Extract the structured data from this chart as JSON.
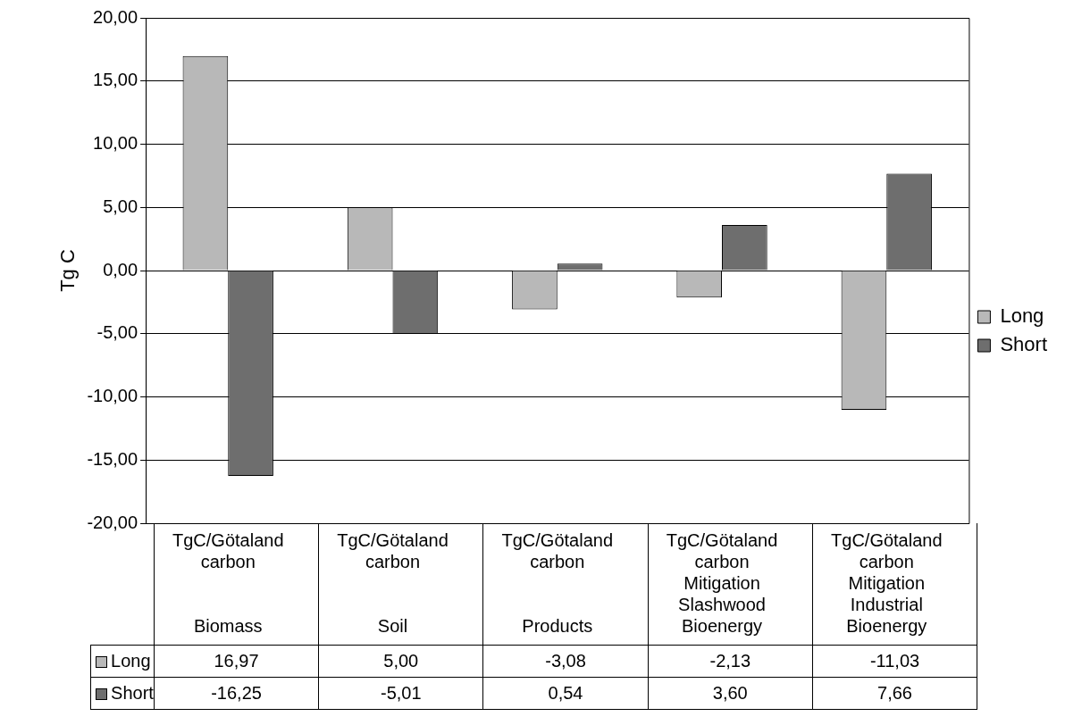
{
  "chart_data": {
    "type": "bar",
    "ylabel": "Tg C",
    "categories": [
      "TgC/Götaland\ncarbon\n\n\nBiomass",
      "TgC/Götaland\ncarbon\n\n\nSoil",
      "TgC/Götaland\ncarbon\n\n\nProducts",
      "TgC/Götaland\ncarbon\nMitigation\nSlashwood\nBioenergy",
      "TgC/Götaland\ncarbon\nMitigation\nIndustrial\nBioenergy"
    ],
    "series": [
      {
        "name": "Long",
        "color": "#b8b8b8",
        "values": [
          16.97,
          5.0,
          -3.08,
          -2.13,
          -11.03
        ],
        "value_labels": [
          "16,97",
          "5,00",
          "-3,08",
          "-2,13",
          "-11,03"
        ]
      },
      {
        "name": "Short",
        "color": "#6e6e6e",
        "values": [
          -16.25,
          -5.01,
          0.54,
          3.6,
          7.66
        ],
        "value_labels": [
          "-16,25",
          "-5,01",
          "0,54",
          "3,60",
          "7,66"
        ]
      }
    ],
    "ylim": [
      -20,
      20
    ],
    "yticks": [
      {
        "value": -20,
        "label": "-20,00"
      },
      {
        "value": -15,
        "label": "-15,00"
      },
      {
        "value": -10,
        "label": "-10,00"
      },
      {
        "value": -5,
        "label": "-5,00"
      },
      {
        "value": 0,
        "label": "0,00"
      },
      {
        "value": 5,
        "label": "5,00"
      },
      {
        "value": 10,
        "label": "10,00"
      },
      {
        "value": 15,
        "label": "15,00"
      },
      {
        "value": 20,
        "label": "20,00"
      }
    ],
    "grid": "y",
    "legend": "right"
  }
}
